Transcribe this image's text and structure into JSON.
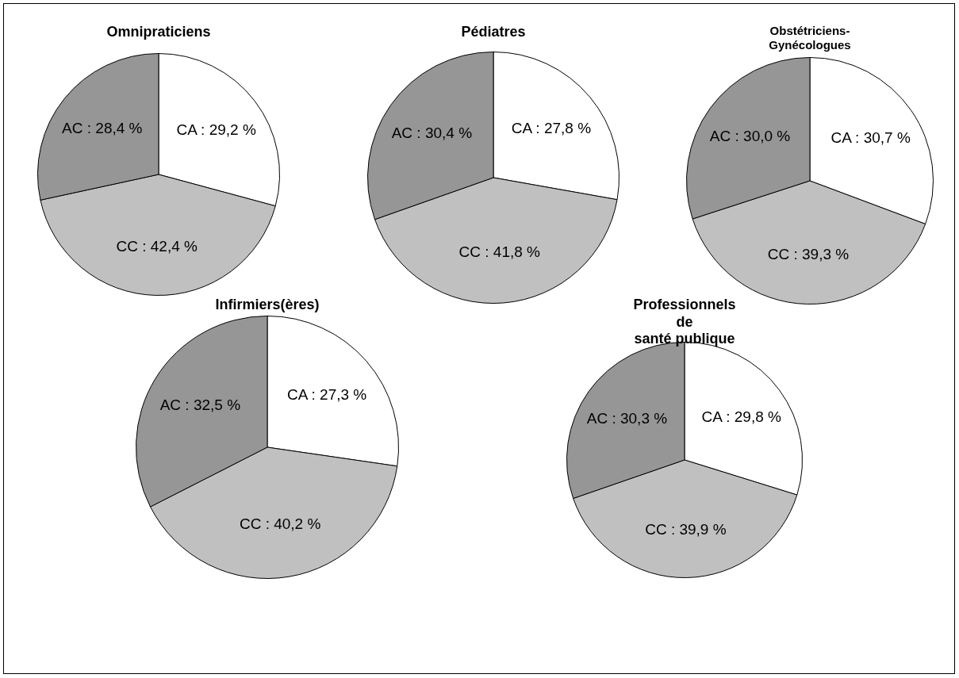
{
  "chart_data": [
    {
      "type": "pie",
      "title": "Omnipraticiens",
      "categories": [
        "CA",
        "CC",
        "AC"
      ],
      "values": [
        29.2,
        42.4,
        28.4
      ],
      "colors": [
        "#ffffff",
        "#c0c0c0",
        "#969696"
      ],
      "value_labels": [
        "29,2 %",
        "42,4 %",
        "28,4 %"
      ]
    },
    {
      "type": "pie",
      "title": "Pédiatres",
      "categories": [
        "CA",
        "CC",
        "AC"
      ],
      "values": [
        27.8,
        41.8,
        30.4
      ],
      "colors": [
        "#ffffff",
        "#c0c0c0",
        "#969696"
      ],
      "value_labels": [
        "27,8 %",
        "41,8 %",
        "30,4 %"
      ]
    },
    {
      "type": "pie",
      "title": "Obstétriciens-\nGynécologues",
      "categories": [
        "CA",
        "CC",
        "AC"
      ],
      "values": [
        30.7,
        39.3,
        30.0
      ],
      "colors": [
        "#ffffff",
        "#c0c0c0",
        "#969696"
      ],
      "value_labels": [
        "30,7 %",
        "39,3 %",
        "30,0 %"
      ]
    },
    {
      "type": "pie",
      "title": "Infirmiers(ères)",
      "categories": [
        "CA",
        "CC",
        "AC"
      ],
      "values": [
        27.3,
        40.2,
        32.5
      ],
      "colors": [
        "#ffffff",
        "#c0c0c0",
        "#969696"
      ],
      "value_labels": [
        "27,3 %",
        "40,2 %",
        "32,5 %"
      ]
    },
    {
      "type": "pie",
      "title": "Professionnels de\nsanté publique",
      "categories": [
        "CA",
        "CC",
        "AC"
      ],
      "values": [
        29.8,
        39.9,
        30.3
      ],
      "colors": [
        "#ffffff",
        "#c0c0c0",
        "#969696"
      ],
      "value_labels": [
        "29,8 %",
        "39,9 %",
        "30,3 %"
      ]
    }
  ]
}
